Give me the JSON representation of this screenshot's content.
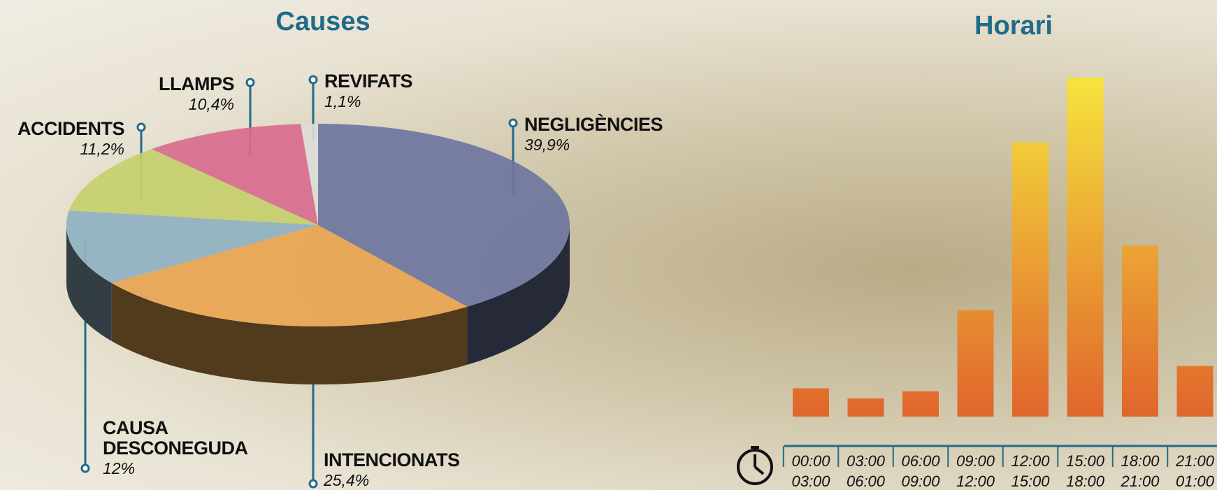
{
  "chart_data": [
    {
      "type": "pie",
      "title": "Causes",
      "categories": [
        "NEGLIGÈNCIES",
        "INTENCIONATS",
        "CAUSA DESCONEGUDA",
        "ACCIDENTS",
        "LLAMPS",
        "REVIFATS"
      ],
      "values": [
        39.9,
        25.4,
        12,
        11.2,
        10.4,
        1.1
      ],
      "value_labels": [
        "39,9%",
        "25,4%",
        "12%",
        "11,2%",
        "10,4%",
        "1,1%"
      ],
      "colors": [
        "#6e76a0",
        "#e9a552",
        "#8fb1c2",
        "#c6cf6c",
        "#d86d8e",
        "#dcdcd6"
      ]
    },
    {
      "type": "bar",
      "title": "Horari",
      "categories": [
        [
          "00:00",
          "03:00"
        ],
        [
          "03:00",
          "06:00"
        ],
        [
          "06:00",
          "09:00"
        ],
        [
          "09:00",
          "12:00"
        ],
        [
          "12:00",
          "15:00"
        ],
        [
          "15:00",
          "18:00"
        ],
        [
          "18:00",
          "21:00"
        ],
        [
          "21:00",
          "01:00"
        ]
      ],
      "values": [
        2.8,
        1.8,
        2.5,
        10.5,
        27.1,
        33.5,
        16.9,
        5.0
      ],
      "color": "#e0652c"
    }
  ]
}
